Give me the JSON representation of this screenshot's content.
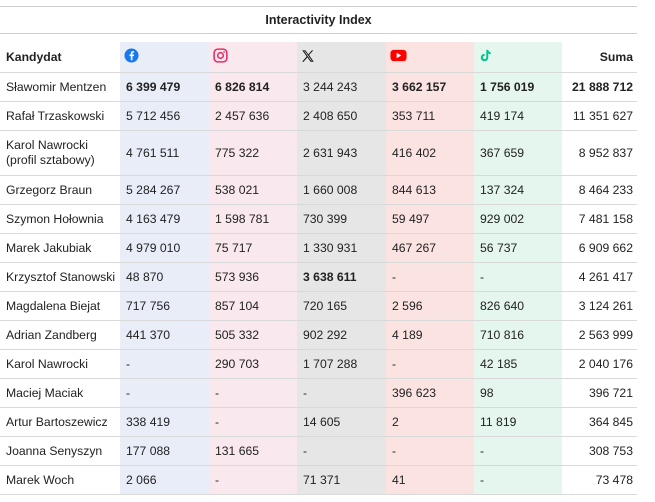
{
  "title": "Interactivity Index",
  "header": {
    "candidate": "Kandydat",
    "sum": "Suma",
    "platform_icons": [
      "facebook-icon",
      "instagram-icon",
      "x-icon",
      "youtube-icon",
      "tiktok-icon"
    ]
  },
  "colors": {
    "facebook": "#1877f2",
    "instagram": "#e1306c",
    "x": "#111111",
    "youtube": "#ff0000",
    "tiktok": "#00c48c"
  },
  "rows": [
    {
      "name": "Sławomir Mentzen",
      "fb": "6 399 479",
      "ig": "6 826 814",
      "x": "3 244 243",
      "yt": "3 662 157",
      "tt": "1 756 019",
      "sum": "21 888 712"
    },
    {
      "name": "Rafał Trzaskowski",
      "fb": "5 712 456",
      "ig": "2 457 636",
      "x": "2 408 650",
      "yt": "353 711",
      "tt": "419 174",
      "sum": "11 351 627"
    },
    {
      "name": "Karol Nawrocki (profil sztabowy)",
      "fb": "4 761 511",
      "ig": "775 322",
      "x": "2 631 943",
      "yt": "416 402",
      "tt": "367 659",
      "sum": "8 952 837"
    },
    {
      "name": "Grzegorz Braun",
      "fb": "5 284 267",
      "ig": "538 021",
      "x": "1 660 008",
      "yt": "844 613",
      "tt": "137 324",
      "sum": "8 464 233"
    },
    {
      "name": "Szymon Hołownia",
      "fb": "4 163 479",
      "ig": "1 598 781",
      "x": "730 399",
      "yt": "59 497",
      "tt": "929 002",
      "sum": "7 481 158"
    },
    {
      "name": "Marek Jakubiak",
      "fb": "4 979 010",
      "ig": "75 717",
      "x": "1 330 931",
      "yt": "467 267",
      "tt": "56 737",
      "sum": "6 909 662"
    },
    {
      "name": "Krzysztof Stanowski",
      "fb": "48 870",
      "ig": "573 936",
      "x": "3 638 611",
      "yt": "-",
      "tt": "-",
      "sum": "4 261 417"
    },
    {
      "name": "Magdalena Biejat",
      "fb": "717 756",
      "ig": "857 104",
      "x": "720 165",
      "yt": "2 596",
      "tt": "826 640",
      "sum": "3 124 261"
    },
    {
      "name": "Adrian Zandberg",
      "fb": "441 370",
      "ig": "505 332",
      "x": "902 292",
      "yt": "4 189",
      "tt": "710 816",
      "sum": "2 563 999"
    },
    {
      "name": "Karol Nawrocki",
      "fb": "-",
      "ig": "290 703",
      "x": "1 707 288",
      "yt": "-",
      "tt": "42 185",
      "sum": "2 040 176"
    },
    {
      "name": "Maciej Maciak",
      "fb": "-",
      "ig": "-",
      "x": "-",
      "yt": "396 623",
      "tt": "98",
      "sum": "396 721"
    },
    {
      "name": "Artur Bartoszewicz",
      "fb": "338 419",
      "ig": "-",
      "x": "14 605",
      "yt": "2",
      "tt": "11 819",
      "sum": "364 845"
    },
    {
      "name": "Joanna Senyszyn",
      "fb": "177 088",
      "ig": "131 665",
      "x": "-",
      "yt": "-",
      "tt": "-",
      "sum": "308 753"
    },
    {
      "name": "Marek Woch",
      "fb": "2 066",
      "ig": "-",
      "x": "71 371",
      "yt": "41",
      "tt": "-",
      "sum": "73 478"
    }
  ]
}
